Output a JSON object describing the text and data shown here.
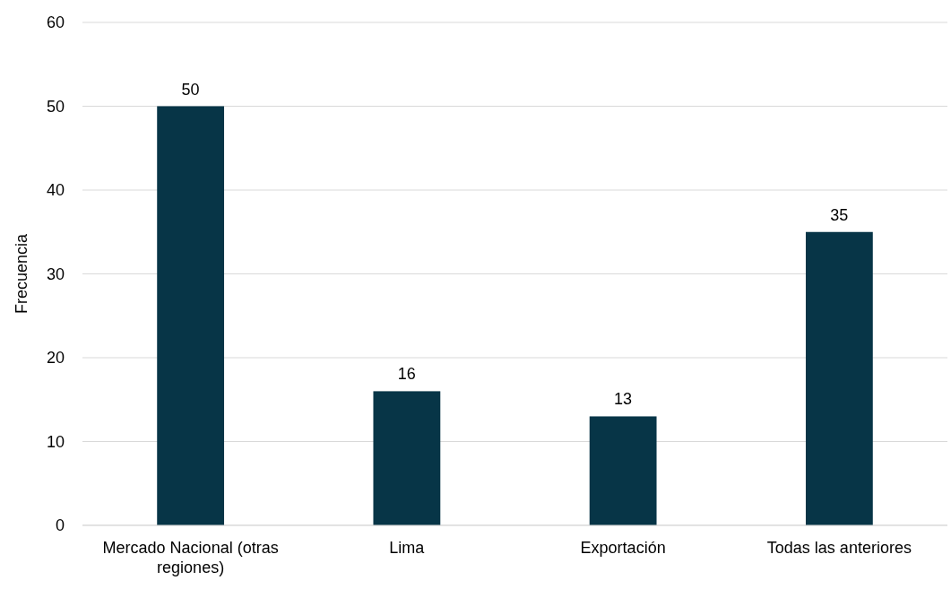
{
  "chart_data": {
    "type": "bar",
    "ylabel": "Frecuencia",
    "categories": [
      "Mercado Nacional (otras regiones)",
      "Lima",
      "Exportación",
      "Todas las anteriores"
    ],
    "values": [
      50,
      16,
      13,
      35
    ],
    "color": "#073547",
    "ylim": [
      0,
      60
    ],
    "yticks": [
      0,
      10,
      20,
      30,
      40,
      50,
      60
    ],
    "grid": "y",
    "data_labels": true
  }
}
